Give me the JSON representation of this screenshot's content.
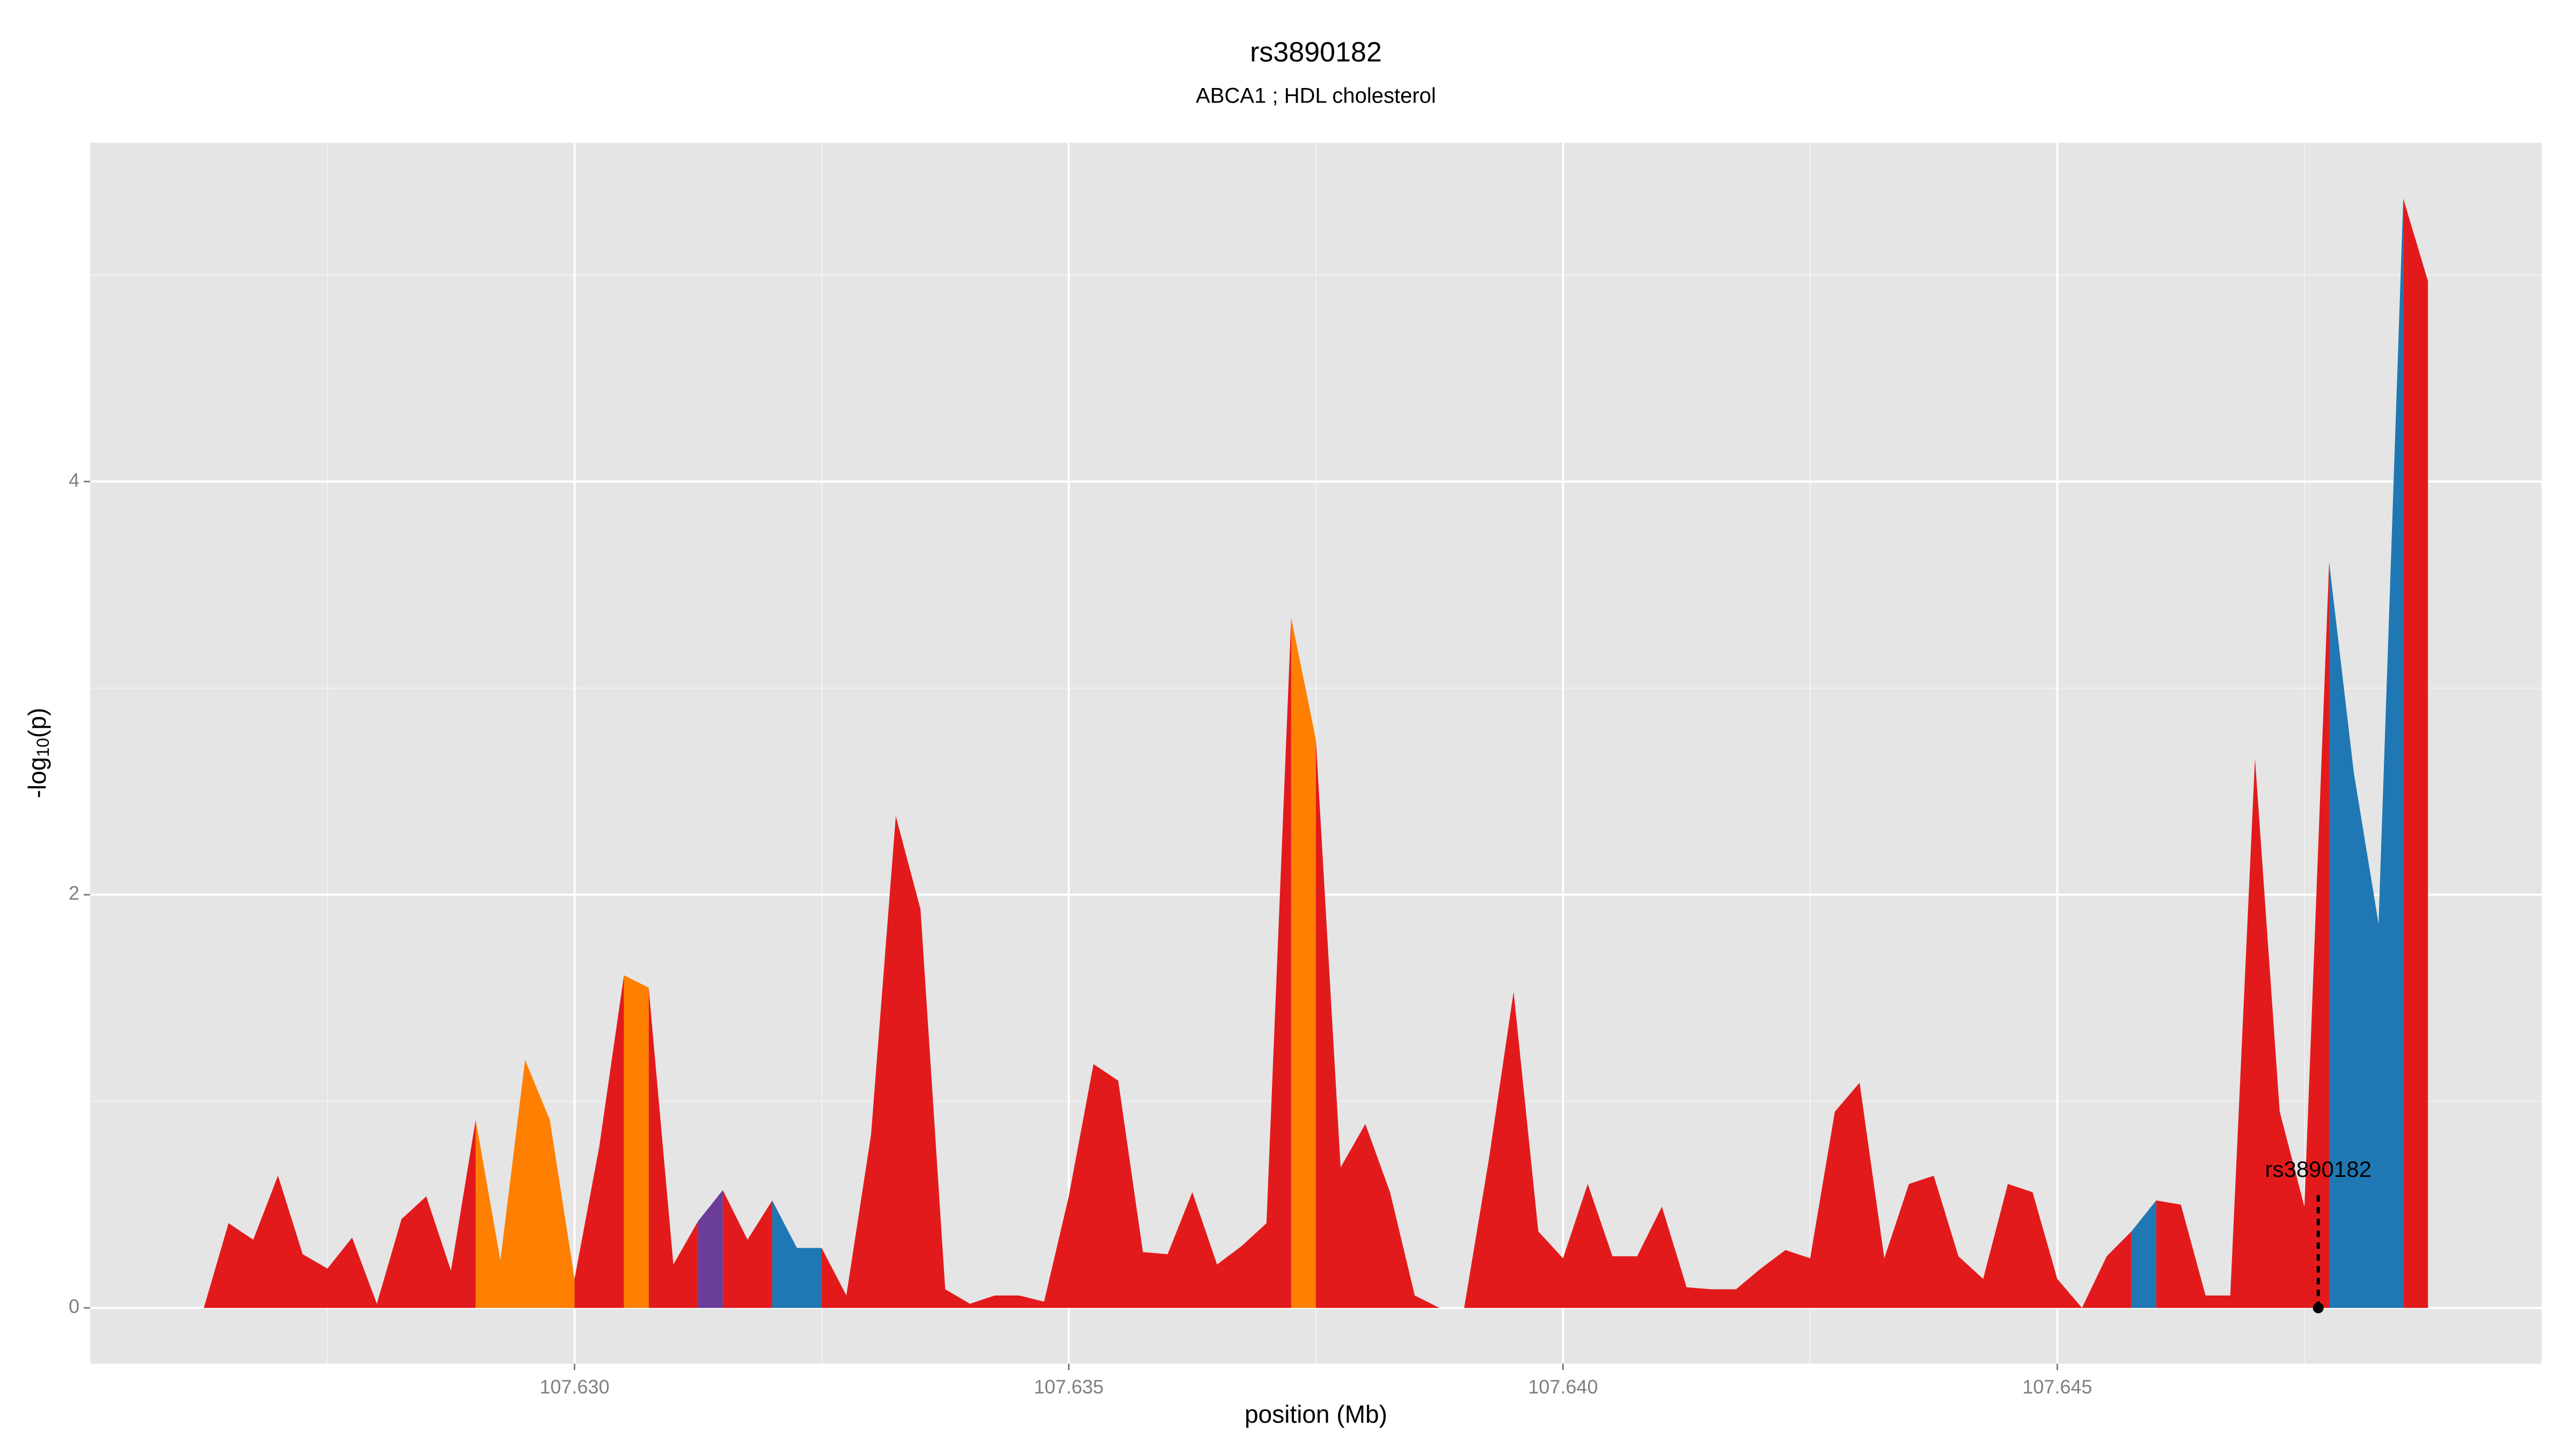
{
  "chart_data": {
    "type": "area",
    "title": "rs3890182",
    "subtitle": "ABCA1 ; HDL cholesterol",
    "x_label": "position (Mb)",
    "y_label": {
      "main": "-log",
      "sub": "10",
      "tail": "(p)"
    },
    "xlim": [
      107.6251,
      107.6499
    ],
    "ylim": [
      -0.27,
      5.64
    ],
    "xticks": [
      {
        "value": 107.63,
        "label": "107.630"
      },
      {
        "value": 107.635,
        "label": "107.635"
      },
      {
        "value": 107.64,
        "label": "107.640"
      },
      {
        "value": 107.645,
        "label": "107.645"
      }
    ],
    "yticks": [
      0,
      2,
      4
    ],
    "grid": true,
    "series": [
      {
        "color": "#e31a1c",
        "x": [
          107.62625,
          107.6265,
          107.62675,
          107.627,
          107.62725,
          107.6275,
          107.62775,
          107.628,
          107.62825,
          107.6285,
          107.62875,
          107.629,
          null,
          107.63,
          107.63025,
          107.6305,
          null,
          107.63075,
          107.631,
          107.63125,
          null,
          107.6315,
          107.63175,
          107.632,
          null,
          107.6325,
          107.63275,
          107.633,
          107.63325,
          107.6335,
          107.63375,
          107.634,
          107.63425,
          107.6345,
          107.63475,
          107.635,
          107.63525,
          107.6355,
          107.63575,
          107.636,
          107.63625,
          107.6365,
          107.63675,
          107.637,
          107.63725,
          null,
          107.6375,
          107.63775,
          107.638,
          107.63825,
          107.6385,
          107.63875,
          null,
          107.639,
          107.63925,
          107.6395,
          107.63975,
          107.64,
          107.64025,
          107.6405,
          107.64075,
          107.641,
          107.64125,
          107.6415,
          107.64175,
          107.642,
          107.64225,
          107.6425,
          107.64275,
          107.643,
          107.64325,
          107.6435,
          107.64375,
          107.644,
          107.64425,
          107.6445,
          107.64475,
          107.645,
          107.64525,
          107.6455,
          107.64575,
          null,
          107.646,
          107.64625,
          107.6465,
          107.64675,
          107.647,
          107.64725,
          107.6475,
          107.64775,
          null,
          107.6485,
          107.64875
        ],
        "values": [
          0,
          0.41,
          0.33,
          0.64,
          0.26,
          0.19,
          0.34,
          0.02,
          0.43,
          0.54,
          0.18,
          0.91,
          null,
          0.14,
          0.78,
          1.61,
          null,
          1.55,
          0.21,
          0.42,
          null,
          0.57,
          0.33,
          0.52,
          null,
          0.29,
          0.06,
          0.84,
          2.38,
          1.93,
          0.09,
          0.02,
          0.06,
          0.06,
          0.03,
          0.54,
          1.18,
          1.1,
          0.27,
          0.26,
          0.56,
          0.21,
          0.3,
          0.41,
          3.34,
          null,
          2.75,
          0.68,
          0.89,
          0.56,
          0.06,
          0,
          null,
          0,
          0.72,
          1.53,
          0.37,
          0.24,
          0.6,
          0.25,
          0.25,
          0.49,
          0.1,
          0.09,
          0.09,
          0.19,
          0.28,
          0.24,
          0.95,
          1.09,
          0.24,
          0.6,
          0.64,
          0.25,
          0.14,
          0.6,
          0.56,
          0.14,
          0,
          0.25,
          0.37,
          null,
          0.52,
          0.5,
          0.06,
          0.06,
          2.66,
          0.95,
          0.49,
          3.61,
          null,
          5.37,
          4.97
        ]
      },
      {
        "color": "#ff7f00",
        "x": [
          107.629,
          107.62925,
          107.6295,
          107.62975,
          107.63,
          null,
          107.6305,
          107.63075,
          null,
          107.63725,
          107.6375
        ],
        "values": [
          0.91,
          0.23,
          1.2,
          0.91,
          0.14,
          null,
          1.61,
          1.55,
          null,
          3.34,
          2.75
        ]
      },
      {
        "color": "#6a3d9a",
        "x": [
          107.63125,
          107.6315
        ],
        "values": [
          0.42,
          0.57
        ]
      },
      {
        "color": "#1f78b4",
        "x": [
          107.632,
          107.63225,
          107.6325,
          null,
          107.63875,
          107.639,
          null,
          107.64575,
          107.646,
          null,
          107.64775,
          107.648,
          107.64825,
          107.6485
        ],
        "values": [
          0.52,
          0.29,
          0.29,
          null,
          0,
          0,
          null,
          0.37,
          0.52,
          null,
          3.61,
          2.59,
          1.86,
          5.37
        ]
      }
    ],
    "annotation": {
      "text": "rs3890182",
      "x": 107.64764,
      "y": 0
    }
  }
}
